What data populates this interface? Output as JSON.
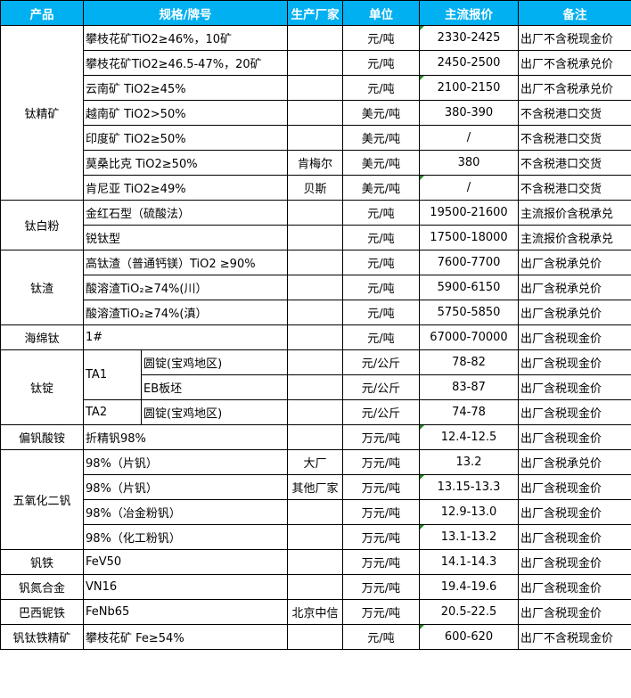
{
  "headers": [
    "产品",
    "规格/牌号",
    "生产厂家",
    "单位",
    "主流报价",
    "备注"
  ],
  "groups": [
    {
      "product": "钛精矿",
      "rows": [
        {
          "spec": "攀枝花矿TiO2≥46%，10矿",
          "maker": "",
          "unit": "元/吨",
          "price": "2330-2425",
          "note": "出厂不含税现金价",
          "mark": true
        },
        {
          "spec": "攀枝花矿TiO2≥46.5-47%，20矿",
          "maker": "",
          "unit": "元/吨",
          "price": "2450-2500",
          "note": "出厂不含税承兑价"
        },
        {
          "spec": "云南矿 TiO2≥45%",
          "maker": "",
          "unit": "元/吨",
          "price": "2100-2150",
          "note": "出厂不含税承兑价",
          "mark": true
        },
        {
          "spec": "越南矿 TiO2>50%",
          "maker": "",
          "unit": "美元/吨",
          "price": "380-390",
          "note": "不含税港口交货"
        },
        {
          "spec": "印度矿 TiO2≥50%",
          "maker": "",
          "unit": "美元/吨",
          "price": "/",
          "note": "不含税港口交货"
        },
        {
          "spec": "莫桑比克 TiO2≥50%",
          "maker": "肯梅尔",
          "unit": "美元/吨",
          "price": "380",
          "note": "不含税港口交货"
        },
        {
          "spec": "肯尼亚 TiO2≥49%",
          "maker": "贝斯",
          "unit": "美元/吨",
          "price": "/",
          "note": "不含税港口交货",
          "mark": true
        }
      ]
    },
    {
      "product": "钛白粉",
      "rows": [
        {
          "spec": "金红石型（硫酸法）",
          "maker": "",
          "unit": "元/吨",
          "price": "19500-21600",
          "note": "主流报价含税承兑"
        },
        {
          "spec": "锐钛型",
          "maker": "",
          "unit": "元/吨",
          "price": "17500-18000",
          "note": "主流报价含税承兑"
        }
      ]
    },
    {
      "product": "钛渣",
      "rows": [
        {
          "spec": "高钛渣（普通钙镁）TiO2 ≥90%",
          "maker": "",
          "unit": "元/吨",
          "price": "7600-7700",
          "note": "出厂含税承兑价"
        },
        {
          "spec": "酸溶渣TiO₂≥74%(川）",
          "maker": "",
          "unit": "元/吨",
          "price": "5900-6150",
          "note": "出厂含税承兑价"
        },
        {
          "spec": "酸溶渣TiO₂≥74%(滇）",
          "maker": "",
          "unit": "元/吨",
          "price": "5750-5850",
          "note": "出厂含税承兑价"
        }
      ]
    },
    {
      "product": "海绵钛",
      "rows": [
        {
          "spec": "1#",
          "maker": "",
          "unit": "元/吨",
          "price": "67000-70000",
          "note": "出厂含税现金价"
        }
      ]
    },
    {
      "product": "钛锭",
      "rows": [
        {
          "grade": "TA1",
          "grade_span": 2,
          "spec": "圆锭(宝鸡地区)",
          "maker": "",
          "unit": "元/公斤",
          "price": "78-82",
          "note": "出厂含税现金价"
        },
        {
          "grade_skip": true,
          "spec": "EB板坯",
          "maker": "",
          "unit": "元/公斤",
          "price": "83-87",
          "note": "出厂含税现金价"
        },
        {
          "grade": "TA2",
          "grade_span": 1,
          "spec": "圆锭(宝鸡地区)",
          "maker": "",
          "unit": "元/公斤",
          "price": "74-78",
          "note": "出厂含税现金价"
        }
      ]
    },
    {
      "product": "偏钒酸铵",
      "rows": [
        {
          "spec": "折精钒98%",
          "maker": "",
          "unit": "万元/吨",
          "price": "12.4-12.5",
          "note": "出厂含税现金价",
          "mark": true
        }
      ]
    },
    {
      "product": "五氧化二钒",
      "rows": [
        {
          "spec": "98%（片钒）",
          "maker": "大厂",
          "unit": "万元/吨",
          "price": "13.2",
          "note": "出厂含税承兑价"
        },
        {
          "spec": "98%（片钒）",
          "maker": "其他厂家",
          "unit": "万元/吨",
          "price": "13.15-13.3",
          "note": "出厂含税现金价",
          "mark": true
        },
        {
          "spec": "98%（冶金粉钒）",
          "maker": "",
          "unit": "万元/吨",
          "price": "12.9-13.0",
          "note": "出厂含税现金价"
        },
        {
          "spec": "98%（化工粉钒）",
          "maker": "",
          "unit": "万元/吨",
          "price": "13.1-13.2",
          "note": "出厂含税现金价",
          "mark": true
        }
      ]
    },
    {
      "product": "钒铁",
      "rows": [
        {
          "spec": "FeV50",
          "maker": "",
          "unit": "万元/吨",
          "price": "14.1-14.3",
          "note": "出厂含税现金价"
        }
      ]
    },
    {
      "product": "钒氮合金",
      "rows": [
        {
          "spec": "VN16",
          "maker": "",
          "unit": "万元/吨",
          "price": "19.4-19.6",
          "note": "出厂含税现金价"
        }
      ]
    },
    {
      "product": "巴西铌铁",
      "rows": [
        {
          "spec": "FeNb65",
          "maker": "北京中信",
          "unit": "万元/吨",
          "price": "20.5-22.5",
          "note": "出厂含税现金价"
        }
      ]
    },
    {
      "product": "钒钛铁精矿",
      "rows": [
        {
          "spec": "攀枝花矿 Fe≥54%",
          "maker": "",
          "unit": "元/吨",
          "price": "600-620",
          "note": "出厂不含税现金价",
          "mark": true
        }
      ]
    }
  ],
  "colors": {
    "header_bg": "#00b0f0",
    "header_text": "#ffffff",
    "cell_marker": "#1a8a1a"
  }
}
